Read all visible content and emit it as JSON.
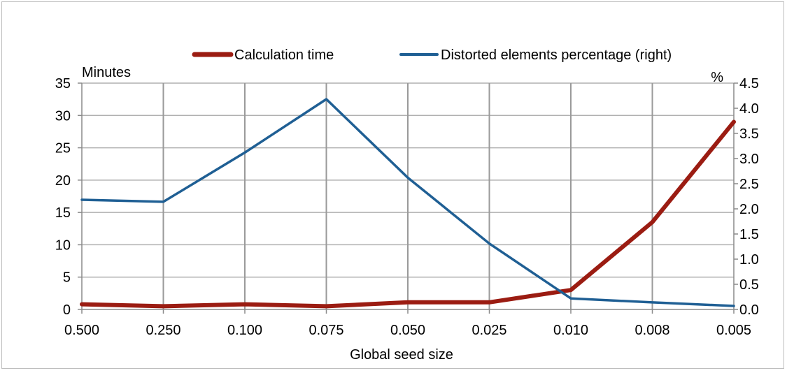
{
  "chart_data": {
    "type": "line",
    "title": "",
    "xlabel": "Global seed size",
    "ylabel": "Minutes",
    "y2label": "%",
    "categories": [
      "0.500",
      "0.250",
      "0.100",
      "0.075",
      "0.050",
      "0.025",
      "0.010",
      "0.008",
      "0.005"
    ],
    "ylim": [
      0,
      35
    ],
    "yticks": [
      "0",
      "5",
      "10",
      "15",
      "20",
      "25",
      "30",
      "35"
    ],
    "y2lim": [
      0,
      4.5
    ],
    "y2ticks": [
      "0.0",
      "0.5",
      "1.0",
      "1.5",
      "2.0",
      "2.5",
      "3.0",
      "3.5",
      "4.0",
      "4.5"
    ],
    "grid": "vertical and horizontal",
    "legend_position": "top",
    "series": [
      {
        "name": "Calculation time",
        "axis": "left",
        "color": "#9b1c12",
        "values": [
          0.8,
          0.5,
          0.8,
          0.5,
          1.1,
          1.1,
          3.0,
          13.5,
          29.0
        ]
      },
      {
        "name": "Distorted elements percentage (right)",
        "axis": "right",
        "color": "#1f5f94",
        "values": [
          2.18,
          2.14,
          3.12,
          4.18,
          2.62,
          1.31,
          0.22,
          0.14,
          0.07
        ]
      }
    ]
  }
}
